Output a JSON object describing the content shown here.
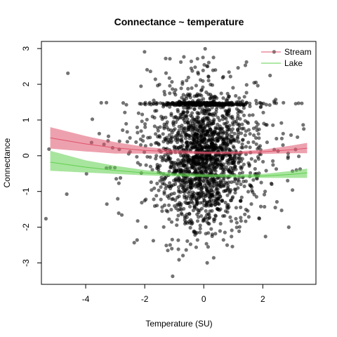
{
  "colors": {
    "points": "#000000",
    "stream": "#DF536B",
    "lake": "#61D04F"
  },
  "chart_data": {
    "type": "scatter",
    "title": "Connectance ~ temperature",
    "xlabel": "Temperature (SU)",
    "ylabel": "Connectance",
    "xlim": [
      -5.5,
      3.8
    ],
    "ylim": [
      -3.6,
      3.2
    ],
    "x_ticks": [
      -4,
      -2,
      0,
      2
    ],
    "x_tick_labels": [
      "-4",
      "-2",
      "0",
      "2"
    ],
    "y_ticks": [
      -3,
      -2,
      -1,
      0,
      1,
      2,
      3
    ],
    "y_tick_labels": [
      "-3",
      "-2",
      "-1",
      "0",
      "1",
      "2",
      "3"
    ],
    "grid": false,
    "legend_position": "top-right",
    "legend": [
      "Stream",
      "Lake"
    ],
    "series": [
      {
        "name": "Stream",
        "type": "line-with-ci",
        "color": "#DF536B",
        "x": [
          -5.2,
          -4.0,
          -3.0,
          -2.0,
          -1.0,
          0.0,
          1.0,
          2.0,
          3.0,
          3.5
        ],
        "y": [
          0.5,
          0.33,
          0.22,
          0.15,
          0.11,
          0.08,
          0.08,
          0.11,
          0.17,
          0.21
        ],
        "lower": [
          0.2,
          0.12,
          0.06,
          0.06,
          0.05,
          0.04,
          0.04,
          0.05,
          0.07,
          0.07
        ],
        "upper": [
          0.8,
          0.55,
          0.38,
          0.25,
          0.17,
          0.12,
          0.12,
          0.17,
          0.29,
          0.36
        ]
      },
      {
        "name": "Lake",
        "type": "line-with-ci",
        "color": "#61D04F",
        "x": [
          -5.2,
          -4.0,
          -3.0,
          -2.0,
          -1.0,
          0.0,
          1.0,
          2.0,
          3.0,
          3.5
        ],
        "y": [
          -0.18,
          -0.32,
          -0.41,
          -0.48,
          -0.53,
          -0.56,
          -0.57,
          -0.57,
          -0.52,
          -0.48
        ],
        "lower": [
          -0.42,
          -0.47,
          -0.51,
          -0.55,
          -0.58,
          -0.6,
          -0.61,
          -0.62,
          -0.62,
          -0.62
        ],
        "upper": [
          0.14,
          -0.13,
          -0.28,
          -0.4,
          -0.48,
          -0.51,
          -0.52,
          -0.51,
          -0.42,
          -0.36
        ]
      },
      {
        "name": "",
        "type": "scatter",
        "color": "#000000",
        "n": 2200,
        "x_mean": 0.0,
        "x_sd": 1.0,
        "y_mean": 0.0,
        "y_sd": 1.0
      }
    ]
  }
}
